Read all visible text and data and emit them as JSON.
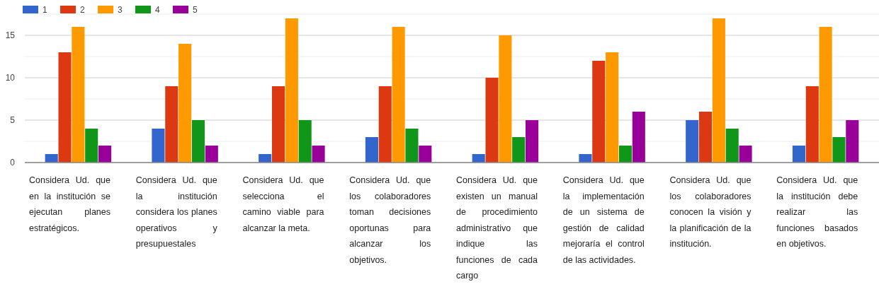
{
  "chart_data": {
    "type": "bar",
    "categories": [
      "Considera Ud. que en la institución se ejecutan planes estratégicos.",
      "Considera Ud. que la institución considera los planes operativos y presupuestales",
      "Considera Ud. que selecciona el camino viable para alcanzar la meta.",
      "Considera Ud. que los colaboradores toman decisiones oportunas para alcanzar los objetivos.",
      "Considera Ud. que existen un manual de procedimiento administrativo que indique las funciones de cada cargo",
      "Considera Ud. que la implementación de un sistema de gestión de calidad mejoraría el control de las actividades.",
      "Considera Ud. que los colaboradores conocen la visión y la planificación de la institución.",
      "Considera Ud. que la institución debe realizar las funciones basados en objetivos."
    ],
    "series": [
      {
        "name": "1",
        "color": "#3366cc",
        "values": [
          1,
          4,
          1,
          3,
          1,
          1,
          5,
          2
        ]
      },
      {
        "name": "2",
        "color": "#dc3912",
        "values": [
          13,
          9,
          9,
          9,
          10,
          12,
          6,
          9
        ]
      },
      {
        "name": "3",
        "color": "#ff9900",
        "values": [
          16,
          14,
          17,
          16,
          15,
          13,
          17,
          16
        ]
      },
      {
        "name": "4",
        "color": "#109618",
        "values": [
          4,
          5,
          5,
          4,
          3,
          2,
          4,
          3
        ]
      },
      {
        "name": "5",
        "color": "#990099",
        "values": [
          2,
          2,
          2,
          2,
          5,
          6,
          2,
          5
        ]
      }
    ],
    "ylim": [
      0,
      17.5
    ],
    "yticks": [
      0,
      {
        "value": 2.5,
        "label": null
      },
      5,
      {
        "value": 7.5,
        "label": null
      },
      10,
      {
        "value": 12.5,
        "label": null
      },
      15,
      {
        "value": 17.5,
        "label": null
      }
    ],
    "grid": "y",
    "legend": "top left"
  }
}
